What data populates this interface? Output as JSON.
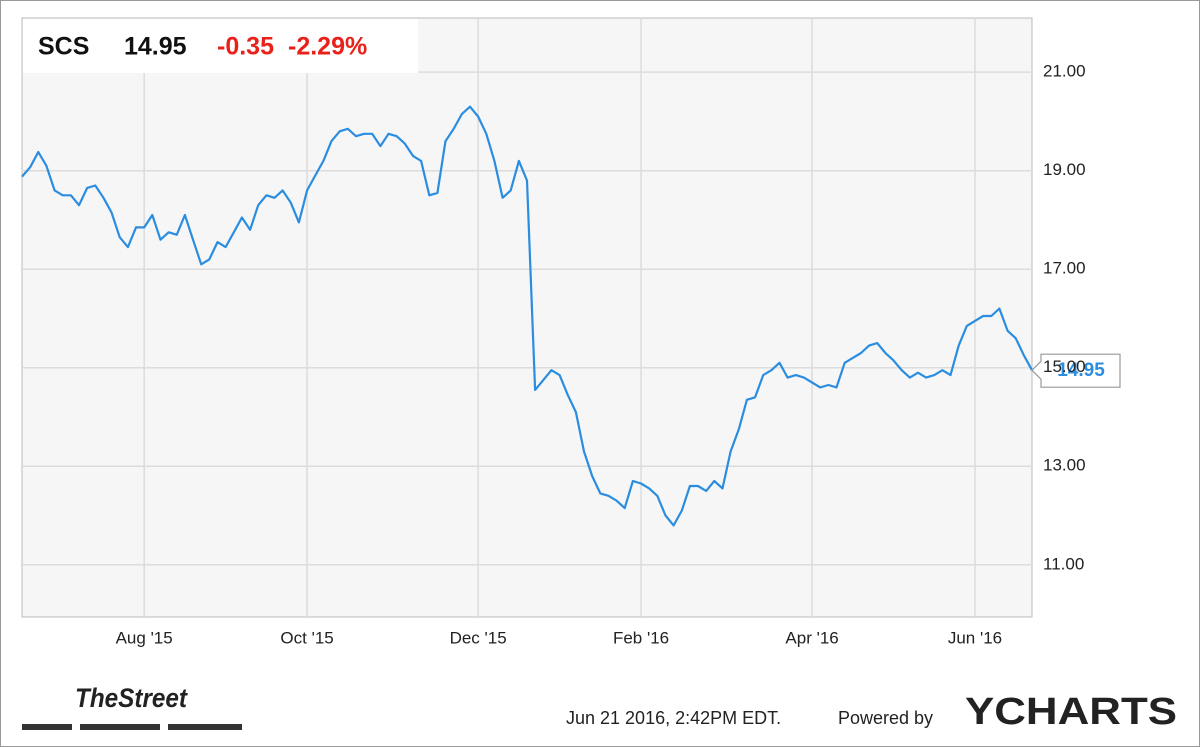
{
  "chart_data": {
    "type": "line",
    "ticker": "SCS",
    "price": "14.95",
    "change": "-0.35",
    "change_percent": "-2.29%",
    "categories": [
      null,
      null,
      null,
      null,
      null,
      null,
      null,
      null,
      null,
      null,
      null,
      null,
      null,
      null,
      null,
      "Aug '15",
      null,
      null,
      null,
      null,
      null,
      null,
      null,
      null,
      null,
      null,
      null,
      null,
      null,
      null,
      null,
      null,
      null,
      null,
      null,
      "Oct '15",
      null,
      null,
      null,
      null,
      null,
      null,
      null,
      null,
      null,
      null,
      null,
      null,
      null,
      null,
      null,
      null,
      null,
      null,
      null,
      null,
      "Dec '15",
      null,
      null,
      null,
      null,
      null,
      null,
      null,
      null,
      null,
      null,
      null,
      null,
      null,
      null,
      null,
      null,
      null,
      null,
      null,
      "Feb '16",
      null,
      null,
      null,
      null,
      null,
      null,
      null,
      null,
      null,
      null,
      null,
      null,
      null,
      null,
      null,
      null,
      null,
      null,
      null,
      null,
      "Apr '16",
      null,
      null,
      null,
      null,
      null,
      null,
      null,
      null,
      null,
      null,
      null,
      null,
      null,
      null,
      null,
      null,
      null,
      null,
      null,
      "Jun '16",
      null,
      null,
      null,
      null,
      null,
      null,
      null
    ],
    "series": [
      {
        "name": "SCS",
        "color": "#2b8de0",
        "values": [
          18.88,
          19.07,
          19.38,
          19.1,
          18.6,
          18.5,
          18.5,
          18.3,
          18.65,
          18.7,
          18.45,
          18.15,
          17.65,
          17.45,
          17.85,
          17.85,
          18.1,
          17.6,
          17.75,
          17.7,
          18.1,
          17.6,
          17.1,
          17.2,
          17.55,
          17.45,
          17.75,
          18.05,
          17.8,
          18.3,
          18.5,
          18.45,
          18.6,
          18.35,
          17.95,
          18.6,
          18.9,
          19.2,
          19.6,
          19.8,
          19.85,
          19.7,
          19.75,
          19.75,
          19.5,
          19.75,
          19.7,
          19.55,
          19.3,
          19.2,
          18.5,
          18.55,
          19.6,
          19.85,
          20.15,
          20.3,
          20.1,
          19.75,
          19.2,
          18.45,
          18.6,
          19.2,
          18.8,
          14.55,
          14.75,
          14.95,
          14.85,
          14.45,
          14.1,
          13.3,
          12.8,
          12.45,
          12.4,
          12.3,
          12.15,
          12.7,
          12.65,
          12.55,
          12.4,
          12.0,
          11.8,
          12.1,
          12.6,
          12.6,
          12.5,
          12.7,
          12.55,
          13.3,
          13.75,
          14.35,
          14.4,
          14.85,
          14.95,
          15.1,
          14.8,
          14.85,
          14.8,
          14.7,
          14.6,
          14.65,
          14.6,
          15.1,
          15.2,
          15.3,
          15.45,
          15.5,
          15.3,
          15.15,
          14.95,
          14.8,
          14.9,
          14.8,
          14.85,
          14.95,
          14.85,
          15.45,
          15.85,
          15.95,
          16.05,
          16.05,
          16.2,
          15.75,
          15.6,
          15.25,
          14.95
        ]
      }
    ],
    "ylim": [
      9.94,
      22.1
    ],
    "yticks": [
      {
        "value": 11,
        "label": "11.00"
      },
      {
        "value": 13,
        "label": "13.00"
      },
      {
        "value": 15,
        "label": "15.00"
      },
      {
        "value": 17,
        "label": "17.00"
      },
      {
        "value": 19,
        "label": "19.00"
      },
      {
        "value": 21,
        "label": "21.00"
      }
    ],
    "grid": true
  },
  "footer": {
    "brand": "TheStreet",
    "timestamp": "Jun 21 2016, 2:42PM EDT.",
    "powered": "Powered by",
    "provider": "YCHARTS"
  }
}
